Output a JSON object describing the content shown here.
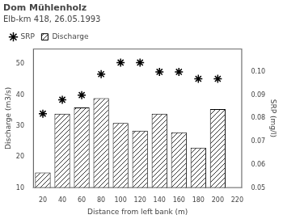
{
  "chart_data": {
    "type": "bar",
    "title": "Dom Mühlenholz",
    "subtitle": "Elb-km 418, 26.05.1993",
    "xlabel": "Distance from left bank (m)",
    "ylabel": "Discharge (m3/s)",
    "y2label": "SRP (mg/l)",
    "x": [
      20,
      40,
      60,
      80,
      100,
      120,
      140,
      160,
      180,
      200
    ],
    "series": [
      {
        "name": "Discharge",
        "type": "bar",
        "color": "black",
        "values": [
          15.0,
          34.0,
          36.0,
          39.0,
          31.0,
          28.5,
          34.0,
          28.0,
          23.0,
          35.5
        ]
      },
      {
        "name": "SRP",
        "type": "scatter",
        "color": "black",
        "marker": "star",
        "axis": "y2",
        "values": [
          0.082,
          0.088,
          0.09,
          0.099,
          0.104,
          0.104,
          0.1,
          0.1,
          0.097,
          0.097
        ]
      }
    ],
    "xlim": [
      10,
      225
    ],
    "xticks": [
      20,
      40,
      60,
      80,
      100,
      120,
      140,
      160,
      180,
      200,
      220
    ],
    "ylim": [
      10,
      55
    ],
    "yticks": [
      10,
      20,
      30,
      40,
      50
    ],
    "y2lim": [
      0.05,
      0.11
    ],
    "y2ticks": [
      0.05,
      0.06,
      0.07,
      0.08,
      0.09,
      {
        "value": 0.1,
        "label": "0.10"
      }
    ],
    "grid": false,
    "legend": "upper left"
  }
}
